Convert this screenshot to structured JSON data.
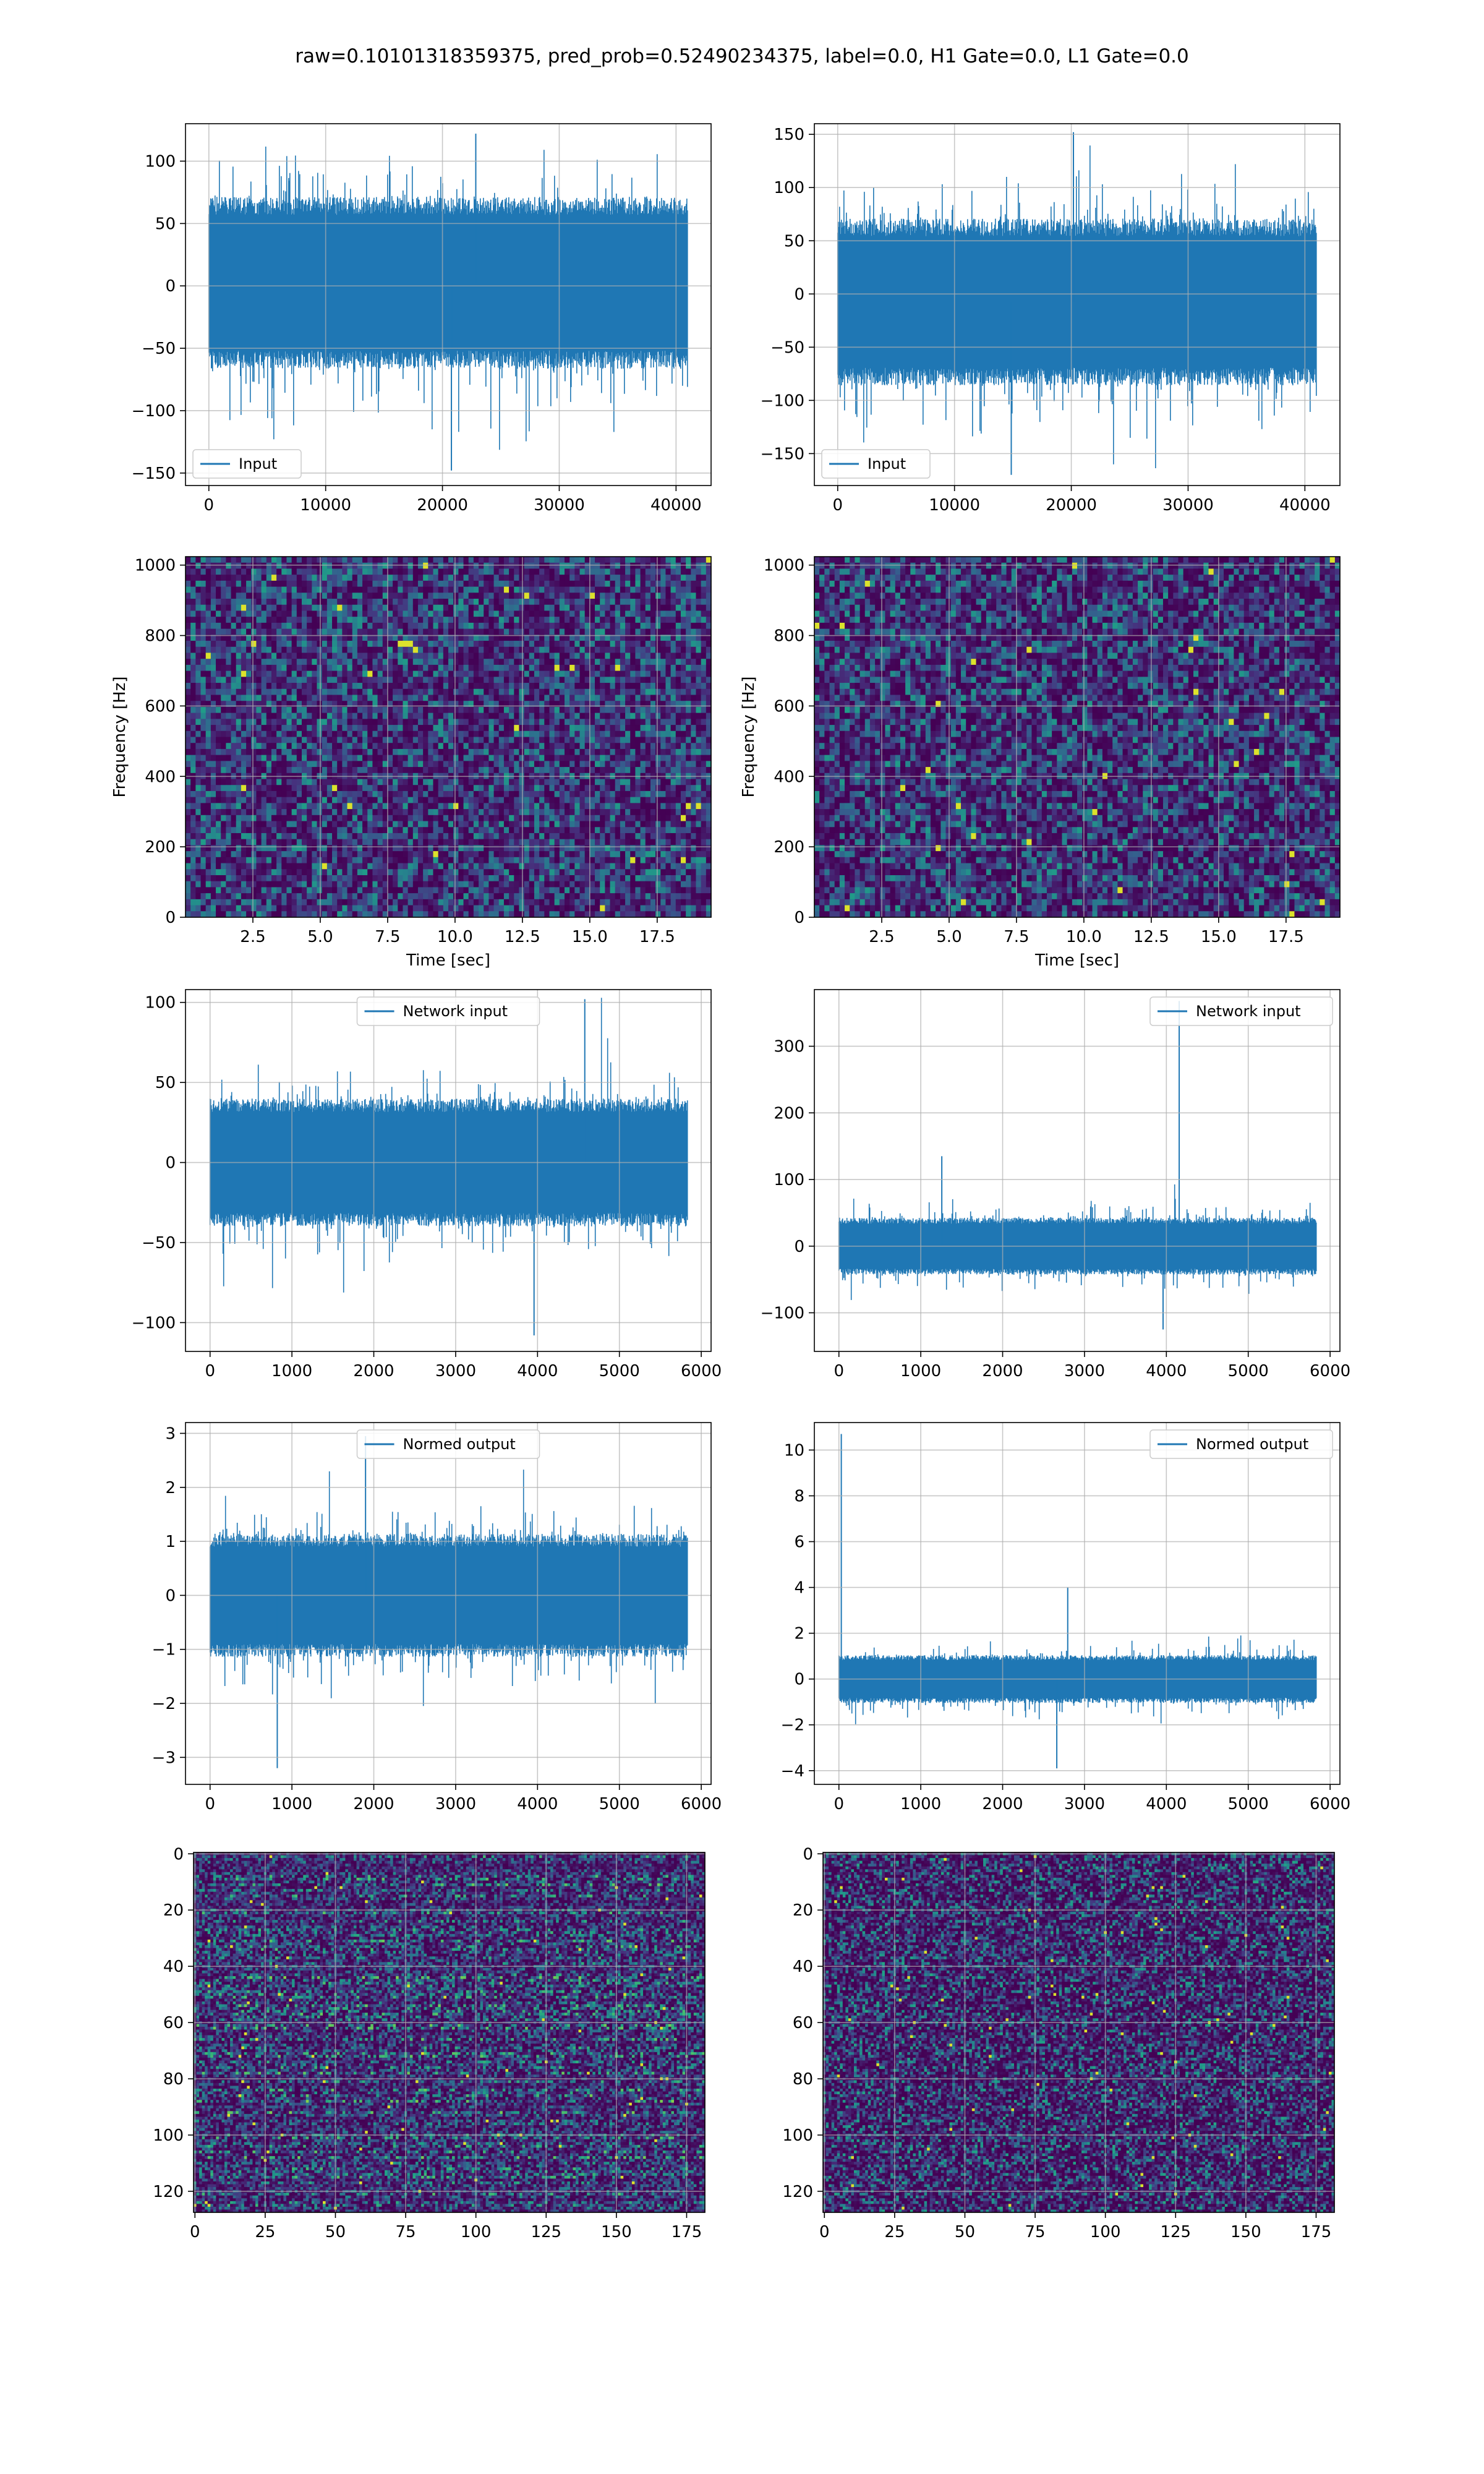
{
  "figure": {
    "title": "raw=0.10101318359375, pred_prob=0.52490234375, label=0.0, H1 Gate=0.0, L1 Gate=0.0"
  },
  "colors": {
    "line": "#1f77b4",
    "grid": "#b0b0b0",
    "viridis": [
      "#440154",
      "#46327e",
      "#365c8d",
      "#277f8e",
      "#1fa187",
      "#4ac16d",
      "#a0da39",
      "#fde725"
    ]
  },
  "chart_data": [
    {
      "id": "input-h1",
      "type": "line",
      "subtype": "noise-waveform",
      "xlim": [
        -2000,
        43000
      ],
      "ylim": [
        -160,
        130
      ],
      "xticks": [
        0,
        10000,
        20000,
        30000,
        40000
      ],
      "yticks": [
        -150,
        -100,
        -50,
        0,
        50,
        100
      ],
      "legend": "Input",
      "legend_loc": "lower-left",
      "series": [
        {
          "name": "Input",
          "x_range": [
            0,
            40960
          ],
          "band": [
            -70,
            75
          ],
          "peaks": [
            122,
            -148
          ]
        }
      ]
    },
    {
      "id": "input-l1",
      "type": "line",
      "subtype": "noise-waveform",
      "xlim": [
        -2000,
        43000
      ],
      "ylim": [
        -180,
        160
      ],
      "xticks": [
        0,
        10000,
        20000,
        30000,
        40000
      ],
      "yticks": [
        -150,
        -100,
        -50,
        0,
        50,
        100,
        150
      ],
      "legend": "Input",
      "legend_loc": "lower-left",
      "series": [
        {
          "name": "Input",
          "x_range": [
            0,
            40960
          ],
          "band": [
            -90,
            75
          ],
          "peaks": [
            152,
            -170
          ]
        }
      ]
    },
    {
      "id": "spectrogram-h1",
      "type": "heatmap",
      "xlim": [
        0,
        19.5
      ],
      "ylim": [
        0,
        1024
      ],
      "xticks": [
        2.5,
        5.0,
        7.5,
        10.0,
        12.5,
        15.0,
        17.5
      ],
      "yticks": [
        0,
        200,
        400,
        600,
        800,
        1000
      ],
      "xlabel": "Time [sec]",
      "ylabel": "Frequency [Hz]",
      "colormap": "viridis",
      "bins": [
        104,
        60
      ]
    },
    {
      "id": "spectrogram-l1",
      "type": "heatmap",
      "xlim": [
        0,
        19.5
      ],
      "ylim": [
        0,
        1024
      ],
      "xticks": [
        2.5,
        5.0,
        7.5,
        10.0,
        12.5,
        15.0,
        17.5
      ],
      "yticks": [
        0,
        200,
        400,
        600,
        800,
        1000
      ],
      "xlabel": "Time [sec]",
      "ylabel": "Frequency [Hz]",
      "colormap": "viridis",
      "bins": [
        104,
        60
      ]
    },
    {
      "id": "network-input-h1",
      "type": "line",
      "subtype": "noise-waveform",
      "xlim": [
        -300,
        6120
      ],
      "ylim": [
        -118,
        108
      ],
      "xticks": [
        0,
        1000,
        2000,
        3000,
        4000,
        5000,
        6000
      ],
      "yticks": [
        -100,
        -50,
        0,
        50,
        100
      ],
      "legend": "Network input",
      "legend_loc": "upper-center",
      "series": [
        {
          "name": "Network input",
          "x_range": [
            0,
            5830
          ],
          "band": [
            -42,
            42
          ],
          "peaks": [
            102,
            -108
          ]
        }
      ]
    },
    {
      "id": "network-input-l1",
      "type": "line",
      "subtype": "noise-waveform",
      "xlim": [
        -300,
        6120
      ],
      "ylim": [
        -158,
        385
      ],
      "xticks": [
        0,
        1000,
        2000,
        3000,
        4000,
        5000,
        6000
      ],
      "yticks": [
        -100,
        0,
        100,
        200,
        300
      ],
      "legend": "Network input",
      "legend_loc": "upper-right",
      "series": [
        {
          "name": "Network input",
          "x_range": [
            0,
            5830
          ],
          "band": [
            -45,
            45
          ],
          "peaks": [
            368,
            -125,
            135
          ]
        }
      ]
    },
    {
      "id": "normed-output-h1",
      "type": "line",
      "subtype": "noise-waveform",
      "xlim": [
        -300,
        6120
      ],
      "ylim": [
        -3.5,
        3.2
      ],
      "xticks": [
        0,
        1000,
        2000,
        3000,
        4000,
        5000,
        6000
      ],
      "yticks": [
        -3,
        -2,
        -1,
        0,
        1,
        2,
        3
      ],
      "legend": "Normed output",
      "legend_loc": "upper-center",
      "series": [
        {
          "name": "Normed output",
          "x_range": [
            0,
            5830
          ],
          "band": [
            -1.2,
            1.2
          ],
          "peaks": [
            2.95,
            -3.2
          ]
        }
      ]
    },
    {
      "id": "normed-output-l1",
      "type": "line",
      "subtype": "noise-waveform",
      "xlim": [
        -300,
        6120
      ],
      "ylim": [
        -4.6,
        11.2
      ],
      "xticks": [
        0,
        1000,
        2000,
        3000,
        4000,
        5000,
        6000
      ],
      "yticks": [
        -4,
        -2,
        0,
        2,
        4,
        6,
        8,
        10
      ],
      "legend": "Normed output",
      "legend_loc": "upper-right",
      "series": [
        {
          "name": "Normed output",
          "x_range": [
            0,
            5830
          ],
          "band": [
            -1.1,
            1.1
          ],
          "peaks": [
            10.7,
            -3.9,
            4.0
          ]
        }
      ]
    },
    {
      "id": "matrix-h1",
      "type": "heatmap",
      "xlim": [
        -0.5,
        181.5
      ],
      "ylim": [
        127.5,
        -0.5
      ],
      "xticks": [
        0,
        25,
        50,
        75,
        100,
        125,
        150,
        175
      ],
      "yticks": [
        0,
        20,
        40,
        60,
        80,
        100,
        120
      ],
      "colormap": "viridis",
      "bins": [
        182,
        128
      ],
      "pattern": "row-banded"
    },
    {
      "id": "matrix-l1",
      "type": "heatmap",
      "xlim": [
        -0.5,
        181.5
      ],
      "ylim": [
        127.5,
        -0.5
      ],
      "xticks": [
        0,
        25,
        50,
        75,
        100,
        125,
        150,
        175
      ],
      "yticks": [
        0,
        20,
        40,
        60,
        80,
        100,
        120
      ],
      "colormap": "viridis",
      "bins": [
        182,
        128
      ],
      "pattern": "sparse"
    }
  ]
}
